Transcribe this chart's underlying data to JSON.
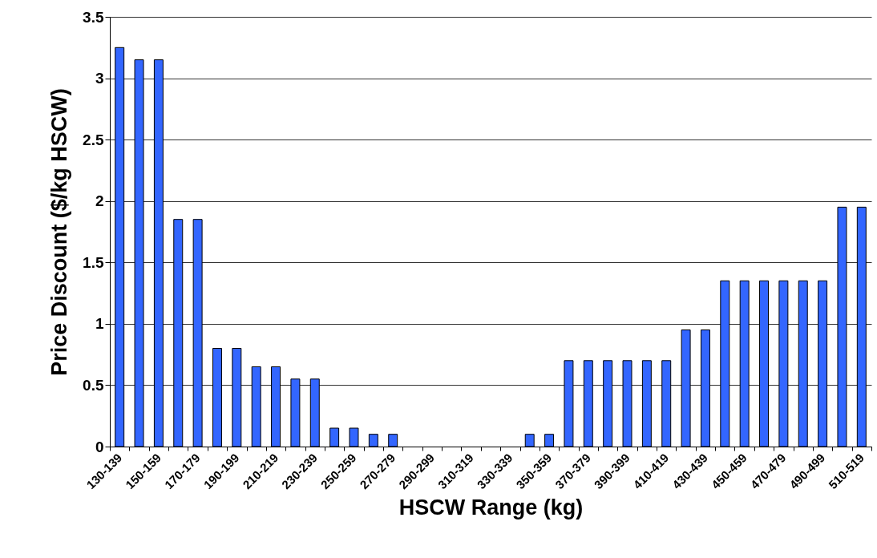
{
  "chart_data": {
    "type": "bar",
    "xlabel": "HSCW Range (kg)",
    "ylabel": "Price Discount ($/kg HSCW)",
    "categories": [
      "130-139",
      null,
      "150-159",
      null,
      "170-179",
      null,
      "190-199",
      null,
      "210-219",
      null,
      "230-239",
      null,
      "250-259",
      null,
      "270-279",
      null,
      "290-299",
      null,
      "310-319",
      null,
      "330-339",
      null,
      "350-359",
      null,
      "370-379",
      null,
      "390-399",
      null,
      "410-419",
      null,
      "430-439",
      null,
      "450-459",
      null,
      "470-479",
      null,
      "490-499",
      null,
      "510-519"
    ],
    "values": [
      3.25,
      3.15,
      3.15,
      1.85,
      1.85,
      0.8,
      0.8,
      0.65,
      0.65,
      0.55,
      0.55,
      0.15,
      0.15,
      0.1,
      0.1,
      0,
      0,
      0,
      0,
      0,
      0,
      0.1,
      0.1,
      0.7,
      0.7,
      0.7,
      0.7,
      0.7,
      0.7,
      0.95,
      0.95,
      1.35,
      1.35,
      1.35,
      1.35,
      1.35,
      1.35,
      1.95,
      1.95
    ],
    "color": "#3366ff",
    "ylim": [
      0,
      3.5
    ],
    "yticks": [
      0,
      0.5,
      1,
      1.5,
      2,
      2.5,
      3,
      3.5
    ],
    "grid": "y"
  }
}
